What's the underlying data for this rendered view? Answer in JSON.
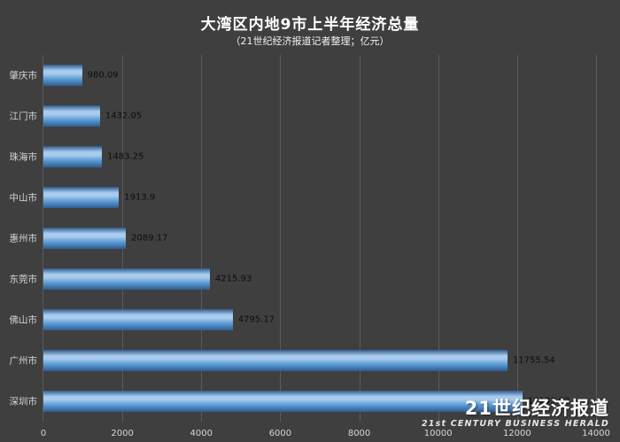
{
  "title": "大湾区内地9市上半年经济总量",
  "subtitle": "（21世纪经济报道记者整理；亿元）",
  "watermark": {
    "cn": "21世纪经济报道",
    "en": "21st CENTURY BUSINESS HERALD"
  },
  "colors": {
    "background": "#3f3f3f",
    "gridline": "#5b5b5b",
    "bar_main": "#5b9bd5",
    "bar_light": "#a9ccee",
    "bar_dark": "#2e5c8f",
    "label": "#d6d6d6",
    "data_label": "#0d0d0d"
  },
  "chart_data": {
    "type": "bar",
    "orientation": "horizontal",
    "title": "大湾区内地9市上半年经济总量",
    "subtitle": "（21世纪经济报道记者整理；亿元）",
    "xlabel": "",
    "ylabel": "",
    "categories": [
      "肇庆市",
      "江门市",
      "珠海市",
      "中山市",
      "惠州市",
      "东莞市",
      "佛山市",
      "广州市",
      "深圳市"
    ],
    "values": [
      980.09,
      1432.05,
      1483.25,
      1913.9,
      2089.17,
      4215.93,
      4795.17,
      11755.54,
      12133.92
    ],
    "value_labels": [
      "980.09",
      "1432.05",
      "1483.25",
      "1913.9",
      "2089.17",
      "4215.93",
      "4795.17",
      "11755.54",
      "12133.92"
    ],
    "xlim": [
      0,
      14000
    ],
    "x_ticks": [
      0,
      2000,
      4000,
      6000,
      8000,
      10000,
      12000,
      14000
    ],
    "grid": true,
    "legend": false
  }
}
